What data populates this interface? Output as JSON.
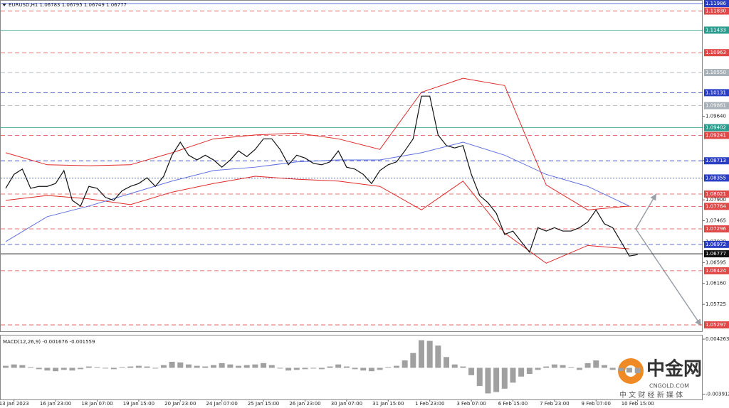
{
  "chart_data": [
    {
      "type": "line",
      "title": "EURUSD,H1  1.06783 1.06795 1.06749 1.06777",
      "categories": [
        null,
        "13 Jan 2023",
        null,
        null,
        null,
        null,
        "16 Jan 23:00",
        null,
        null,
        null,
        null,
        "18 Jan 07:00",
        null,
        null,
        null,
        null,
        "19 Jan 15:00",
        null,
        null,
        null,
        null,
        "20 Jan 23:00",
        null,
        null,
        null,
        null,
        "24 Jan 07:00",
        null,
        null,
        null,
        null,
        "25 Jan 15:00",
        null,
        null,
        null,
        null,
        "26 Jan 23:00",
        null,
        null,
        null,
        null,
        "30 Jan 07:00",
        null,
        null,
        null,
        null,
        "31 Jan 15:00",
        null,
        null,
        null,
        null,
        "1 Feb 23:00",
        null,
        null,
        null,
        null,
        "3 Feb 07:00",
        null,
        null,
        null,
        null,
        "6 Feb 15:00",
        null,
        null,
        null,
        null,
        "7 Feb 23:00",
        null,
        null,
        null,
        null,
        "9 Feb 07:00",
        null,
        null,
        null,
        null,
        "10 Feb 15:00"
      ],
      "values": [
        1.0814,
        1.0843,
        1.0854,
        1.0814,
        1.0818,
        1.0818,
        1.0824,
        1.0851,
        1.0789,
        1.0777,
        1.0818,
        1.0814,
        1.0795,
        1.0789,
        1.0809,
        1.0818,
        1.0824,
        1.0836,
        1.0818,
        1.0839,
        1.0883,
        1.091,
        1.0883,
        1.0873,
        1.0883,
        1.0873,
        1.0858,
        1.0873,
        1.0892,
        1.088,
        1.0895,
        1.0917,
        1.0917,
        1.0895,
        1.0863,
        1.0883,
        1.0877,
        1.0866,
        1.0863,
        1.0869,
        1.0892,
        1.0858,
        1.0854,
        1.0843,
        1.0824,
        1.0851,
        1.0863,
        1.0869,
        1.0892,
        1.0917,
        1.1006,
        1.1006,
        1.0925,
        1.0903,
        1.0898,
        1.0903,
        1.0843,
        1.0799,
        1.0784,
        1.0762,
        1.0718,
        1.0725,
        1.0703,
        1.0681,
        1.0732,
        1.0725,
        1.0732,
        1.0725,
        1.0725,
        1.0732,
        1.0744,
        1.0769,
        1.074,
        1.0732,
        1.0703,
        1.0673,
        1.0676
      ],
      "color": "#111111",
      "bands": {
        "x": [
          0,
          5,
          10,
          15,
          20,
          25,
          30,
          35,
          40,
          45,
          50,
          55,
          60,
          65,
          70,
          75
        ],
        "upper": [
          1.0888,
          1.0863,
          1.0861,
          1.0863,
          1.0888,
          1.0917,
          1.0925,
          1.0929,
          1.0917,
          1.0895,
          1.1014,
          1.1043,
          1.1028,
          1.0821,
          1.0769,
          1.0777
        ],
        "lower": [
          1.0789,
          1.0799,
          1.0792,
          1.078,
          1.0806,
          1.0824,
          1.0839,
          1.0833,
          1.0829,
          1.0818,
          1.0769,
          1.0829,
          1.0721,
          1.0658,
          1.0695,
          1.0688
        ],
        "ma": [
          1.0703,
          1.0755,
          1.0777,
          1.0803,
          1.0829,
          1.0851,
          1.0858,
          1.0869,
          1.0873,
          1.0873,
          1.0888,
          1.091,
          1.0883,
          1.0843,
          1.0818,
          1.0777
        ],
        "band_color": "#e02828",
        "ma_color": "#6070e0"
      },
      "ylim": [
        1.0515,
        1.1206
      ],
      "yticks": [
        {
          "value": 1.0964,
          "label": "1.09640"
        },
        {
          "value": 1.0872,
          "label": "1.08720"
        },
        {
          "value": 1.079,
          "label": "1.07900"
        },
        1.07465,
        {
          "value": 1.0703,
          "label": "1.07030"
        },
        1.06595,
        {
          "value": 1.0616,
          "label": "1.06160"
        },
        1.05725
      ],
      "levels": [
        {
          "value": 1.11986,
          "label": "1.11986",
          "color": "#2b3fc4",
          "dash": "solid"
        },
        {
          "value": 1.1183,
          "label": "1.11830",
          "color": "#e04848",
          "dash": "dashed"
        },
        {
          "value": 1.11433,
          "label": "1.11433",
          "color": "#2a9d8f",
          "dash": "solid"
        },
        {
          "value": 1.10963,
          "label": "1.10963",
          "color": "#e04848",
          "dash": "dashed"
        },
        {
          "value": 1.1055,
          "label": "1.10550",
          "color": "#a8b0b8",
          "dash": "dashed"
        },
        {
          "value": 1.10131,
          "label": "1.10131",
          "color": "#2b3fc4",
          "dash": "dashed"
        },
        {
          "value": 1.09861,
          "label": "1.09861",
          "color": "#a8b0b8",
          "dash": "dashed"
        },
        {
          "value": 1.09402,
          "label": "1.09402",
          "color": "#2a9d8f",
          "dash": "solid"
        },
        {
          "value": 1.09241,
          "label": "1.09241",
          "color": "#e04848",
          "dash": "dashed"
        },
        {
          "value": 1.08713,
          "label": "1.08713",
          "color": "#2b3fc4",
          "dash": "dashed"
        },
        {
          "value": 1.08355,
          "label": "1.08355",
          "color": "#2b3fc4",
          "dash": "dotted"
        },
        {
          "value": 1.08021,
          "label": "1.08021",
          "color": "#e04848",
          "dash": "dashed"
        },
        {
          "value": 1.07764,
          "label": "1.07764",
          "color": "#e04848",
          "dash": "dashed"
        },
        {
          "value": 1.07296,
          "label": "1.07296",
          "color": "#e04848",
          "dash": "dashed"
        },
        {
          "value": 1.06972,
          "label": "1.06972",
          "color": "#2b3fc4",
          "dash": "dashed"
        },
        {
          "value": 1.06777,
          "label": "1.06777",
          "color": "#111111",
          "dash": "solid"
        },
        {
          "value": 1.06424,
          "label": "1.06424",
          "color": "#e04848",
          "dash": "dashed"
        },
        {
          "value": 1.05297,
          "label": "1.05297",
          "color": "#e04848",
          "dash": "dashed"
        }
      ]
    },
    {
      "type": "bar",
      "title": "MACD(12,26,9) -0.001676 -0.001559",
      "values": [
        0.0003,
        0.0005,
        0.0004,
        0.0001,
        -0.0002,
        -0.0004,
        -0.0005,
        -0.0003,
        -0.0004,
        -0.0002,
        0.0002,
        0.0001,
        -0.0001,
        -0.0002,
        0.0001,
        0.0002,
        0.0003,
        0.0002,
        -0.0001,
        0.0004,
        0.0009,
        0.0008,
        0.0005,
        0.0003,
        0.0002,
        0.0004,
        0.0007,
        0.0005,
        0.0003,
        0.0004,
        0.0005,
        0.0007,
        0.0004,
        -0.0001,
        -0.0004,
        -0.0003,
        -0.0002,
        -0.0001,
        -0.0002,
        0.0002,
        0.0005,
        0.0002,
        -0.0002,
        -0.0004,
        -0.0005,
        -0.0003,
        0.0001,
        0.0003,
        0.0011,
        0.0022,
        0.0041,
        0.004,
        0.0033,
        0.0016,
        0.0005,
        0.0002,
        -0.0011,
        -0.0027,
        -0.0038,
        -0.0036,
        -0.0031,
        -0.0022,
        -0.0013,
        -0.0009,
        -0.0003,
        0.0002,
        0.0005,
        0.0004,
        0.0001,
        -0.0003,
        0.0007,
        0.0011,
        0.0004,
        -0.0003,
        -0.0005,
        -0.0007,
        -0.0008
      ],
      "color": "#a0a0a0",
      "ylim": [
        -0.0047,
        0.0048
      ],
      "yticks": [
        0.004263,
        -0.003912
      ]
    }
  ],
  "watermark": {
    "brand": "中金网",
    "site": "CNGOLD.COM",
    "slogan": "中 文 财 经 新 媒 体"
  }
}
